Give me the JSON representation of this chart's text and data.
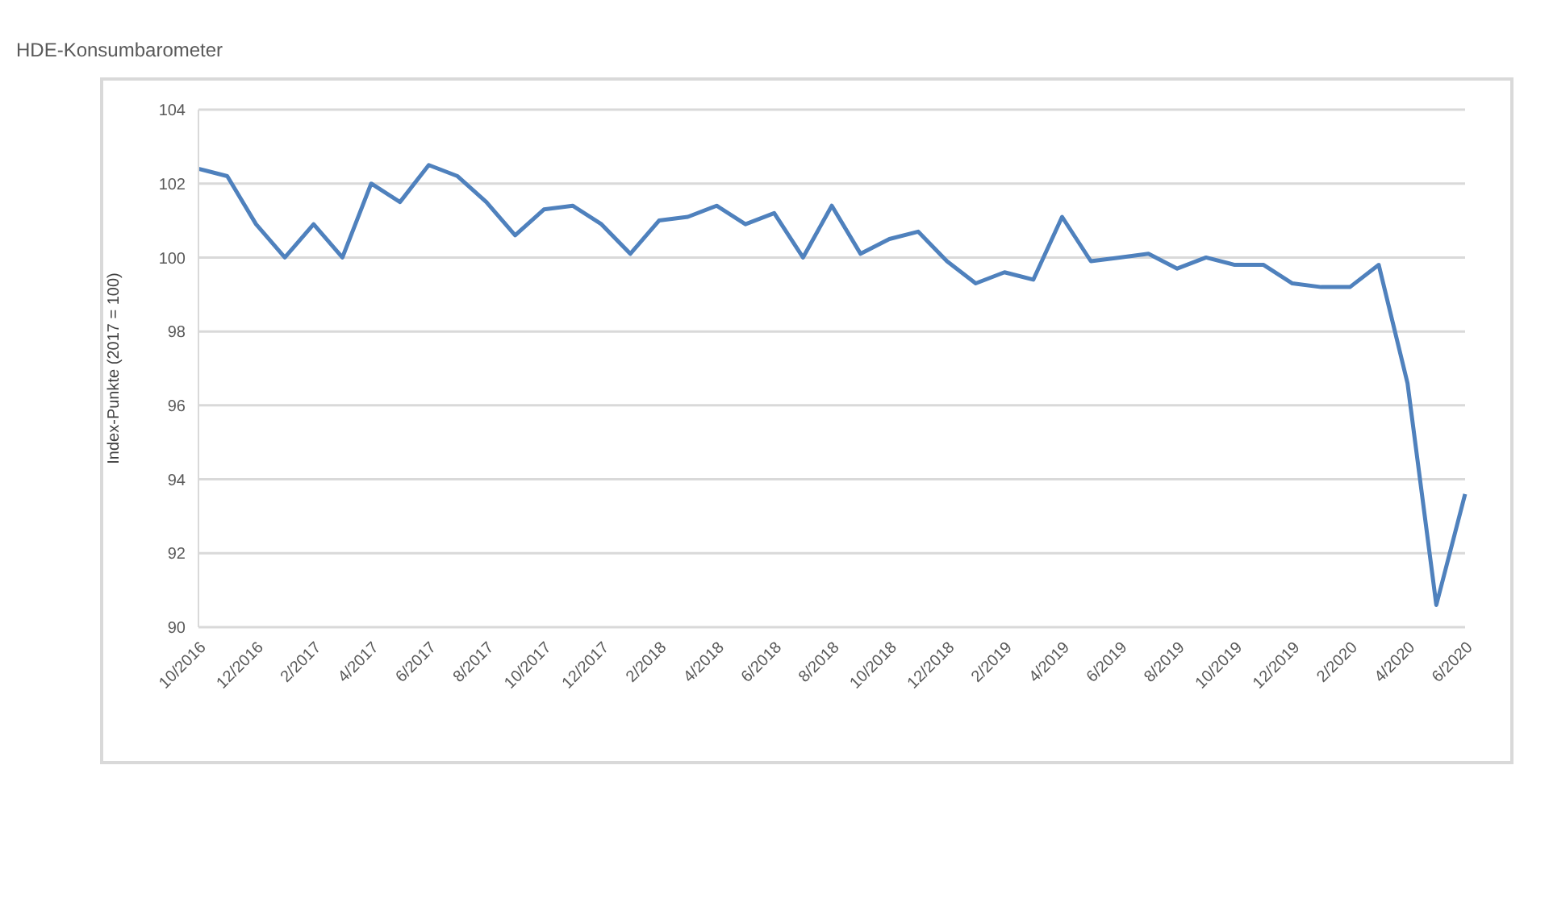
{
  "chart_data": {
    "type": "line",
    "title": "HDE-Konsumbarometer",
    "ylabel": "Index-Punkte (2017 = 100)",
    "categories": [
      "10/2016",
      null,
      "12/2016",
      null,
      "2/2017",
      null,
      "4/2017",
      null,
      "6/2017",
      null,
      "8/2017",
      null,
      "10/2017",
      null,
      "12/2017",
      null,
      "2/2018",
      null,
      "4/2018",
      null,
      "6/2018",
      null,
      "8/2018",
      null,
      "10/2018",
      null,
      "12/2018",
      null,
      "2/2019",
      null,
      "4/2019",
      null,
      "6/2019",
      null,
      "8/2019",
      null,
      "10/2019",
      null,
      "12/2019",
      null,
      "2/2020",
      null,
      "4/2020",
      null,
      "6/2020"
    ],
    "series": [
      {
        "color": "#4f81bd",
        "values": [
          102.4,
          102.2,
          100.9,
          100.0,
          100.9,
          100.0,
          102.0,
          101.5,
          102.5,
          102.2,
          101.5,
          100.6,
          101.3,
          101.4,
          100.9,
          100.1,
          101.0,
          101.1,
          101.4,
          100.9,
          101.2,
          100.0,
          101.4,
          100.1,
          100.5,
          100.7,
          99.9,
          99.3,
          99.6,
          99.4,
          101.1,
          99.9,
          100.0,
          100.1,
          99.7,
          100.0,
          99.8,
          99.8,
          99.3,
          99.2,
          99.2,
          99.8,
          96.6,
          90.6,
          93.6
        ]
      }
    ],
    "ylim": [
      90,
      104
    ],
    "yticks": [
      90,
      92,
      94,
      96,
      98,
      100,
      102,
      104
    ],
    "grid": "y"
  }
}
